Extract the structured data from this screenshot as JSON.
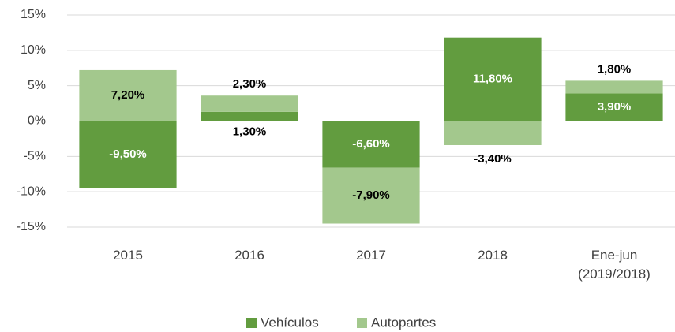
{
  "chart_data": {
    "type": "bar",
    "stacked": true,
    "categories": [
      "2015",
      "2016",
      "2017",
      "2018",
      "Ene-jun (2019/2018)"
    ],
    "series": [
      {
        "name": "Vehículos",
        "color": "#629c3f",
        "values": [
          -9.5,
          1.3,
          -6.6,
          11.8,
          3.9
        ],
        "value_labels": [
          "-9,50%",
          "1,30%",
          "-6,60%",
          "11,80%",
          "3,90%"
        ]
      },
      {
        "name": "Autopartes",
        "color": "#a3c88d",
        "values": [
          7.2,
          2.3,
          -7.9,
          -3.4,
          1.8
        ],
        "value_labels": [
          "7,20%",
          "2,30%",
          "-7,90%",
          "-3,40%",
          "1,80%"
        ]
      }
    ],
    "ylim": [
      -15,
      15
    ],
    "yticks": [
      {
        "value": -15,
        "label": "-15%"
      },
      {
        "value": -10,
        "label": "-10%"
      },
      {
        "value": -5,
        "label": "-5%"
      },
      {
        "value": 0,
        "label": "0%"
      },
      {
        "value": 5,
        "label": "5%"
      },
      {
        "value": 10,
        "label": "10%"
      },
      {
        "value": 15,
        "label": "15%"
      }
    ],
    "grid": true,
    "legend": "bottom"
  }
}
